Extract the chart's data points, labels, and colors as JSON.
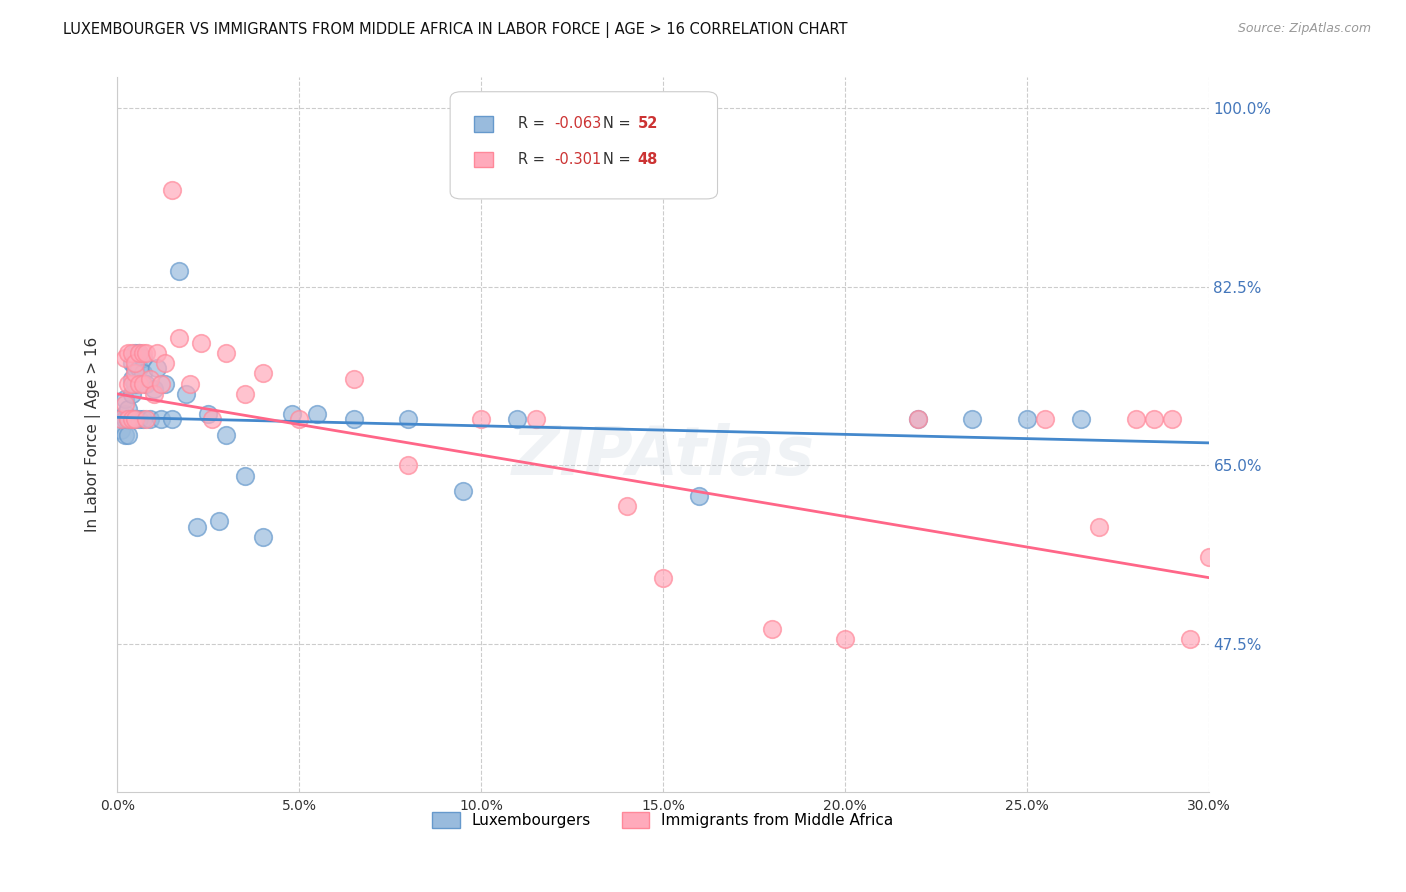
{
  "title": "LUXEMBOURGER VS IMMIGRANTS FROM MIDDLE AFRICA IN LABOR FORCE | AGE > 16 CORRELATION CHART",
  "source": "Source: ZipAtlas.com",
  "ylabel": "In Labor Force | Age > 16",
  "xlim": [
    0.0,
    0.3
  ],
  "ylim": [
    0.33,
    1.03
  ],
  "xtick_labels": [
    "0.0%",
    "",
    "",
    "",
    "5.0%",
    "",
    "",
    "",
    "",
    "10.0%",
    "",
    "",
    "",
    "",
    "15.0%",
    "",
    "",
    "",
    "",
    "20.0%",
    "",
    "",
    "",
    "",
    "25.0%",
    "",
    "",
    "",
    "",
    "30.0%"
  ],
  "xtick_vals": [
    0.0,
    0.05,
    0.1,
    0.15,
    0.2,
    0.25,
    0.3
  ],
  "xtick_display": [
    "0.0%",
    "5.0%",
    "10.0%",
    "15.0%",
    "20.0%",
    "25.0%",
    "30.0%"
  ],
  "ytick_vals": [
    1.0,
    0.825,
    0.65,
    0.475
  ],
  "ytick_labels": [
    "100.0%",
    "82.5%",
    "65.0%",
    "47.5%"
  ],
  "hline_vals": [
    1.0,
    0.825,
    0.65,
    0.475
  ],
  "blue_R": "-0.063",
  "blue_N": "52",
  "pink_R": "-0.301",
  "pink_N": "48",
  "blue_color": "#99BBDD",
  "pink_color": "#FFAABB",
  "blue_edge_color": "#6699CC",
  "pink_edge_color": "#FF8899",
  "blue_trend_color": "#4488CC",
  "pink_trend_color": "#FF6688",
  "blue_label": "Luxembourgers",
  "pink_label": "Immigrants from Middle Africa",
  "watermark": "ZIPAtlas",
  "blue_trend": [
    0.0,
    0.3,
    0.697,
    0.672
  ],
  "pink_trend": [
    0.0,
    0.3,
    0.72,
    0.54
  ],
  "blue_x": [
    0.001,
    0.001,
    0.002,
    0.002,
    0.002,
    0.002,
    0.003,
    0.003,
    0.003,
    0.003,
    0.003,
    0.004,
    0.004,
    0.004,
    0.004,
    0.005,
    0.005,
    0.005,
    0.005,
    0.005,
    0.006,
    0.006,
    0.006,
    0.007,
    0.007,
    0.007,
    0.008,
    0.009,
    0.01,
    0.011,
    0.012,
    0.013,
    0.015,
    0.017,
    0.019,
    0.022,
    0.025,
    0.028,
    0.03,
    0.035,
    0.04,
    0.048,
    0.055,
    0.065,
    0.08,
    0.095,
    0.11,
    0.16,
    0.22,
    0.235,
    0.25,
    0.265
  ],
  "blue_y": [
    0.695,
    0.685,
    0.7,
    0.715,
    0.695,
    0.68,
    0.695,
    0.705,
    0.695,
    0.68,
    0.695,
    0.735,
    0.72,
    0.75,
    0.695,
    0.73,
    0.745,
    0.695,
    0.76,
    0.695,
    0.745,
    0.76,
    0.695,
    0.755,
    0.74,
    0.695,
    0.73,
    0.695,
    0.725,
    0.745,
    0.695,
    0.73,
    0.695,
    0.84,
    0.72,
    0.59,
    0.7,
    0.595,
    0.68,
    0.64,
    0.58,
    0.7,
    0.7,
    0.695,
    0.695,
    0.625,
    0.695,
    0.62,
    0.695,
    0.695,
    0.695,
    0.695
  ],
  "pink_x": [
    0.001,
    0.002,
    0.002,
    0.003,
    0.003,
    0.003,
    0.004,
    0.004,
    0.004,
    0.005,
    0.005,
    0.005,
    0.006,
    0.006,
    0.007,
    0.007,
    0.008,
    0.008,
    0.009,
    0.01,
    0.011,
    0.012,
    0.013,
    0.015,
    0.017,
    0.02,
    0.023,
    0.026,
    0.03,
    0.035,
    0.04,
    0.05,
    0.065,
    0.08,
    0.1,
    0.115,
    0.14,
    0.15,
    0.18,
    0.2,
    0.22,
    0.255,
    0.27,
    0.28,
    0.285,
    0.29,
    0.295,
    0.3
  ],
  "pink_y": [
    0.695,
    0.71,
    0.755,
    0.73,
    0.76,
    0.695,
    0.73,
    0.76,
    0.695,
    0.74,
    0.75,
    0.695,
    0.76,
    0.73,
    0.76,
    0.73,
    0.76,
    0.695,
    0.735,
    0.72,
    0.76,
    0.73,
    0.75,
    0.92,
    0.775,
    0.73,
    0.77,
    0.695,
    0.76,
    0.72,
    0.74,
    0.695,
    0.735,
    0.65,
    0.695,
    0.695,
    0.61,
    0.54,
    0.49,
    0.48,
    0.695,
    0.695,
    0.59,
    0.695,
    0.695,
    0.695,
    0.48,
    0.56
  ]
}
